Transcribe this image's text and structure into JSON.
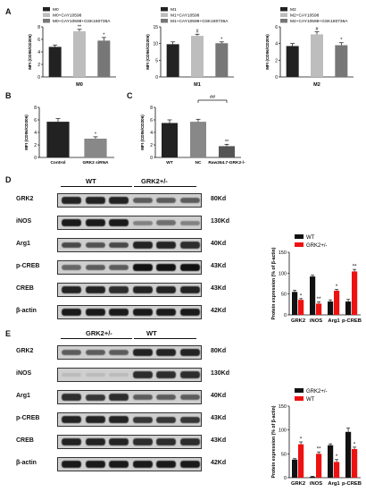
{
  "panels": {
    "A": "A",
    "B": "B",
    "C": "C",
    "D": "D",
    "E": "E"
  },
  "panelA": [
    {
      "xlabel": "M0",
      "legend": [
        "M0",
        "M0+CAY10598",
        "M0+CAY10598+GSK180736A"
      ],
      "ylabel": "MFI (CD86/CD206)",
      "yticks": [
        "0",
        "2",
        "4",
        "6",
        "8"
      ],
      "values": [
        4.8,
        7.3,
        5.8
      ],
      "errors": [
        0.3,
        0.3,
        0.5
      ],
      "stars": [
        "",
        "**",
        "*"
      ],
      "colors": [
        "#222222",
        "#bdbdbd",
        "#777777"
      ],
      "ymax": 8
    },
    {
      "xlabel": "M1",
      "legend": [
        "M1",
        "M1+CAY10598",
        "M1+CAY10598+GSK180736A"
      ],
      "ylabel": "MFI (CD86/CD206)",
      "yticks": [
        "0",
        "5",
        "10",
        "15"
      ],
      "values": [
        9.8,
        12.3,
        10.1
      ],
      "errors": [
        0.7,
        0.5,
        0.4
      ],
      "stars": [
        "",
        "#",
        "*"
      ],
      "colors": [
        "#222222",
        "#bdbdbd",
        "#777777"
      ],
      "ymax": 15
    },
    {
      "xlabel": "M2",
      "legend": [
        "M2",
        "M2+CAY10598",
        "M2+CAY10598+GSK180736A"
      ],
      "ylabel": "MFI (CD86/CD206)",
      "yticks": [
        "0",
        "2",
        "4",
        "6"
      ],
      "values": [
        3.7,
        5.1,
        3.8
      ],
      "errors": [
        0.3,
        0.3,
        0.3
      ],
      "stars": [
        "",
        "#",
        "*"
      ],
      "colors": [
        "#222222",
        "#bdbdbd",
        "#777777"
      ],
      "ymax": 6
    }
  ],
  "panelB": {
    "ylabel": "MFI (CD86/CD206)",
    "yticks": [
      "0",
      "2",
      "4",
      "6",
      "8"
    ],
    "ymax": 8,
    "categories": [
      "Control",
      "GRK2 siRNA"
    ],
    "values": [
      5.7,
      3.0
    ],
    "errors": [
      0.5,
      0.3
    ],
    "stars": [
      "",
      "*"
    ],
    "colors": [
      "#222222",
      "#888888"
    ]
  },
  "panelC": {
    "ylabel": "MFI (CD86/CD206)",
    "yticks": [
      "0",
      "2",
      "4",
      "6",
      "8"
    ],
    "ymax": 8,
    "categories": [
      "WT",
      "NC",
      "Raw264.7-GRK2-/-"
    ],
    "values": [
      5.5,
      5.7,
      1.8
    ],
    "errors": [
      0.5,
      0.4,
      0.3
    ],
    "stars": [
      "",
      "",
      "**"
    ],
    "colors": [
      "#222222",
      "#888888",
      "#555555"
    ],
    "bracket": "##"
  },
  "panelD": {
    "groups": [
      "WT",
      "GRK2+/-"
    ],
    "proteins": [
      "GRK2",
      "iNOS",
      "Arg1",
      "p-CREB",
      "CREB",
      "β-actin"
    ],
    "kd": [
      "80Kd",
      "130Kd",
      "40Kd",
      "43Kd",
      "43Kd",
      "42Kd"
    ],
    "chart_data": {
      "type": "bar",
      "categories": [
        "GRK2",
        "iNOS",
        "Arg1",
        "p-CREB"
      ],
      "ylabel": "Protein expression (% of β-actin)",
      "yticks": [
        "0",
        "50",
        "100",
        "150"
      ],
      "ylim": [
        0,
        150
      ],
      "series": [
        {
          "name": "WT",
          "color": "#111111",
          "values": [
            55,
            92,
            32,
            32
          ],
          "errors": [
            4,
            3,
            4,
            5
          ],
          "stars": [
            "",
            "",
            "",
            ""
          ]
        },
        {
          "name": "GRK2+/-",
          "color": "#ee1111",
          "values": [
            36,
            27,
            58,
            104
          ],
          "errors": [
            3,
            4,
            3,
            5
          ],
          "stars": [
            "*",
            "**",
            "*",
            "**"
          ]
        }
      ]
    }
  },
  "panelE": {
    "groups": [
      "GRK2+/-",
      "WT"
    ],
    "proteins": [
      "GRK2",
      "iNOS",
      "Arg1",
      "p-CREB",
      "CREB",
      "β-actin"
    ],
    "kd": [
      "80Kd",
      "130Kd",
      "40Kd",
      "43Kd",
      "43Kd",
      "42Kd"
    ],
    "chart_data": {
      "type": "bar",
      "categories": [
        "GRK2",
        "iNOS",
        "Arg1",
        "p-CREB"
      ],
      "ylabel": "Protein expression (% of β-actin)",
      "yticks": [
        "0",
        "50",
        "100",
        "150"
      ],
      "ylim": [
        0,
        150
      ],
      "series": [
        {
          "name": "GRK2+/-",
          "color": "#111111",
          "values": [
            38,
            2,
            68,
            96
          ],
          "errors": [
            2,
            1,
            3,
            8
          ],
          "stars": [
            "",
            "",
            "",
            ""
          ]
        },
        {
          "name": "WT",
          "color": "#ee1111",
          "values": [
            70,
            50,
            33,
            60
          ],
          "errors": [
            5,
            4,
            5,
            4
          ],
          "stars": [
            "*",
            "**",
            "*",
            "*"
          ]
        }
      ]
    }
  }
}
